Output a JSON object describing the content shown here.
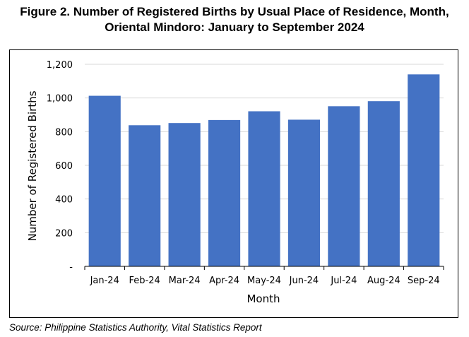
{
  "figure": {
    "title_line1": "Figure 2. Number of Registered Births by Usual Place of Residence, Month,",
    "title_line2": "Oriental Mindoro: January to September 2024",
    "source": "Source: Philippine Statistics Authority, Vital Statistics Report"
  },
  "chart_data": {
    "type": "bar",
    "title": "Figure 2. Number of Registered Births by Usual Place of Residence, Month, Oriental Mindoro: January to September 2024",
    "xlabel": "Month",
    "ylabel": "Number of Registered Births",
    "categories": [
      "Jan-24",
      "Feb-24",
      "Mar-24",
      "Apr-24",
      "May-24",
      "Jun-24",
      "Jul-24",
      "Aug-24",
      "Sep-24"
    ],
    "values": [
      1013,
      838,
      851,
      869,
      921,
      871,
      951,
      981,
      1140
    ],
    "ylim": [
      0,
      1200
    ],
    "yticks": [
      0,
      200,
      400,
      600,
      800,
      1000,
      1200
    ],
    "ytick_labels": [
      "-",
      "200",
      "400",
      "600",
      "800",
      "1,000",
      "1,200"
    ],
    "grid": true,
    "bar_color": "#4472C4",
    "grid_color": "#D9D9D9"
  }
}
